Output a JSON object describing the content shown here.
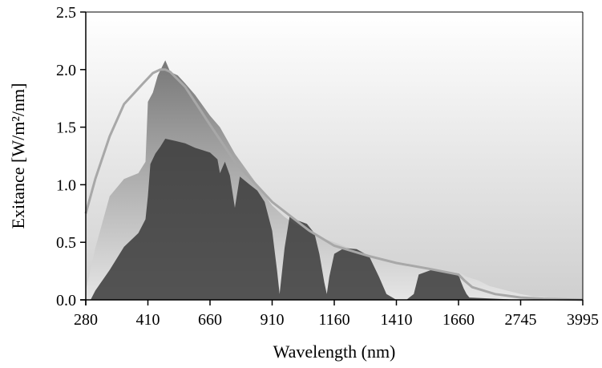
{
  "chart_data": {
    "type": "area",
    "title": "",
    "xlabel": "Wavelength (nm)",
    "ylabel": "Exitance [W/m²/nm]",
    "ylim": [
      0,
      2.5
    ],
    "yticks": [
      0.0,
      0.5,
      1.0,
      1.5,
      2.0,
      2.5
    ],
    "ytick_labels": [
      "0.0",
      "0.5",
      "1.0",
      "1.5",
      "2.0",
      "2.5"
    ],
    "xtick_labels": [
      "280",
      "410",
      "660",
      "910",
      "1160",
      "1410",
      "1660",
      "2745",
      "3995"
    ],
    "grid": false,
    "legend": "none",
    "colors": {
      "background_top": "#ffffff",
      "background_bottom": "#cfcfcf",
      "extraterrestrial_spectrum": "#8e8e8e",
      "surface_spectrum": "#3a3a3a",
      "blackbody_curve": "#a8a8a8"
    },
    "series": [
      {
        "x_nm": [
          280,
          300,
          330,
          360,
          390,
          405,
          410,
          430,
          450,
          480,
          500,
          530,
          560,
          600,
          660,
          700,
          760,
          800,
          850,
          910,
          960,
          1000,
          1060,
          1120,
          1160,
          1220,
          1300,
          1410,
          1500,
          1600,
          1660,
          1700,
          1800,
          2000,
          2200,
          2745,
          3000,
          3500,
          3995
        ],
        "values": [
          0.08,
          0.45,
          0.9,
          1.05,
          1.1,
          1.2,
          1.72,
          1.8,
          1.95,
          2.08,
          1.98,
          1.95,
          1.88,
          1.78,
          1.6,
          1.5,
          1.27,
          1.15,
          1.0,
          0.82,
          0.72,
          0.66,
          0.6,
          0.53,
          0.5,
          0.45,
          0.39,
          0.33,
          0.29,
          0.26,
          0.24,
          0.23,
          0.2,
          0.17,
          0.12,
          0.05,
          0.03,
          0.015,
          0.01
        ]
      },
      {
        "x_nm": [
          290,
          300,
          330,
          360,
          390,
          405,
          410,
          420,
          440,
          460,
          480,
          520,
          560,
          600,
          660,
          690,
          700,
          720,
          740,
          760,
          780,
          820,
          850,
          880,
          910,
          930,
          940,
          960,
          980,
          1000,
          1050,
          1080,
          1100,
          1120,
          1130,
          1140,
          1160,
          1200,
          1250,
          1300,
          1340,
          1370,
          1410,
          1450,
          1480,
          1500,
          1550,
          1600,
          1660,
          1700,
          1750,
          1800,
          1850,
          2745,
          3995
        ],
        "values": [
          0.0,
          0.08,
          0.26,
          0.46,
          0.58,
          0.7,
          0.9,
          1.18,
          1.27,
          1.33,
          1.4,
          1.38,
          1.36,
          1.32,
          1.28,
          1.22,
          1.1,
          1.2,
          1.08,
          0.8,
          1.07,
          1.0,
          0.95,
          0.85,
          0.6,
          0.25,
          0.05,
          0.45,
          0.72,
          0.7,
          0.66,
          0.58,
          0.4,
          0.15,
          0.05,
          0.2,
          0.4,
          0.45,
          0.44,
          0.38,
          0.2,
          0.05,
          0.0,
          0.0,
          0.05,
          0.22,
          0.26,
          0.24,
          0.22,
          0.16,
          0.1,
          0.05,
          0.02,
          0.0,
          0.0
        ]
      },
      {
        "x_nm": [
          280,
          300,
          330,
          360,
          400,
          430,
          460,
          480,
          500,
          560,
          660,
          760,
          910,
          1060,
          1160,
          1300,
          1410,
          1540,
          1660,
          1760,
          1900,
          2300,
          2745,
          3200,
          3995
        ],
        "values": [
          0.75,
          1.05,
          1.42,
          1.7,
          1.88,
          1.97,
          2.0,
          2.0,
          1.98,
          1.85,
          1.52,
          1.2,
          0.85,
          0.6,
          0.47,
          0.38,
          0.32,
          0.27,
          0.22,
          0.17,
          0.11,
          0.05,
          0.02,
          0.01,
          0.0
        ]
      }
    ]
  }
}
